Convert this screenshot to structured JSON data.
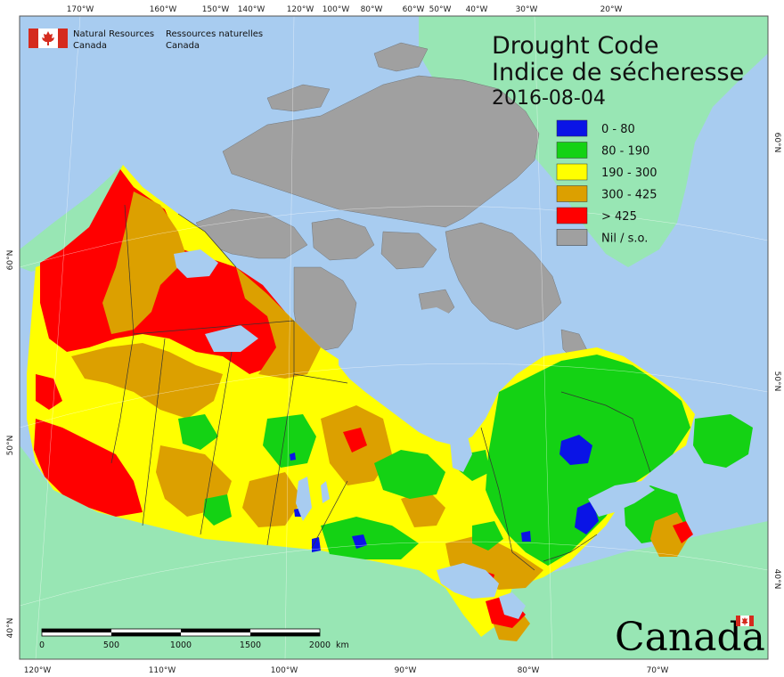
{
  "title": {
    "line1": "Drought Code",
    "line2": "Indice de sécheresse",
    "date": "2016-08-04"
  },
  "organization": {
    "en_line1": "Natural Resources",
    "en_line2": "Canada",
    "fr_line1": "Ressources naturelles",
    "fr_line2": "Canada"
  },
  "legend": [
    {
      "label": "0 - 80",
      "color": "#0a14e6"
    },
    {
      "label": "80 - 190",
      "color": "#14d214"
    },
    {
      "label": "190 - 300",
      "color": "#ffff00"
    },
    {
      "label": "300 - 425",
      "color": "#dca000"
    },
    {
      "label": "> 425",
      "color": "#ff0000"
    },
    {
      "label": "Nil / s.o.",
      "color": "#a0a0a0"
    }
  ],
  "top_ticks": [
    "170°W",
    "160°W",
    "150°W",
    "140°W",
    "120°W",
    "100°W",
    "80°W",
    "60°W",
    "50°W",
    "40°W",
    "30°W",
    "20°W"
  ],
  "bottom_ticks": [
    "120°W",
    "110°W",
    "100°W",
    "90°W",
    "80°W",
    "70°W"
  ],
  "left_ticks": [
    "60°N",
    "50°N",
    "40°N"
  ],
  "right_ticks": [
    "60°N",
    "50°N",
    "40°N"
  ],
  "scale_bar": {
    "labels": [
      "0",
      "500",
      "1000",
      "1500",
      "2000"
    ],
    "unit": "km"
  },
  "wordmark": "Canada",
  "colors": {
    "ocean": "#a8ccf0",
    "foreign_land": "#98e6b4",
    "nodata": "#a0a0a0",
    "flag_red": "#d52b1e"
  }
}
